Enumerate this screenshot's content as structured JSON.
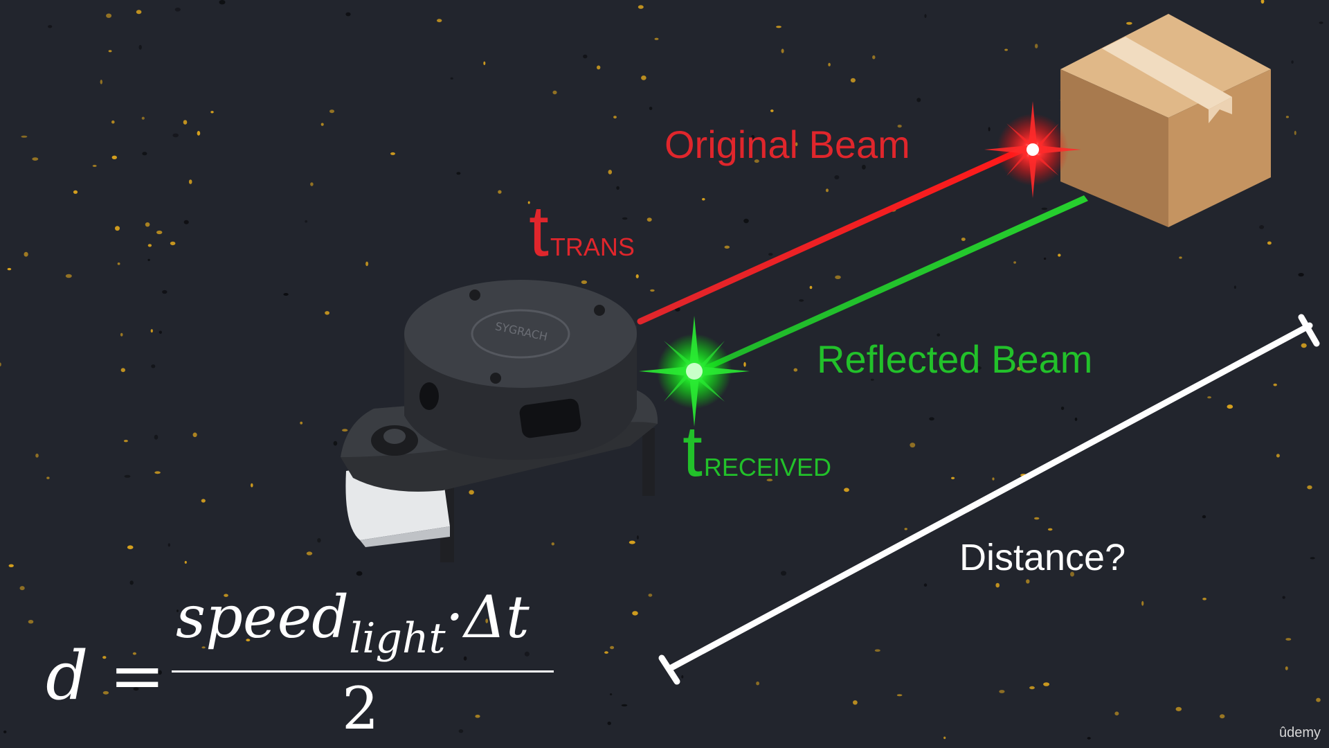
{
  "labels": {
    "original_beam": "Original Beam",
    "reflected_beam": "Reflected Beam",
    "distance": "Distance?",
    "t_trans_main": "t",
    "t_trans_sub": "TRANS",
    "t_received_main": "t",
    "t_received_sub": "RECEIVED"
  },
  "formula": {
    "lhs": "d =",
    "num_main": "speed",
    "num_sub": "light",
    "num_tail": "·Δt",
    "den": "2"
  },
  "lidar": {
    "top_text": "SYGRACH"
  },
  "brand": "ûdemy",
  "colors": {
    "background": "#22252d",
    "original_beam": "#e0262c",
    "reflected_beam": "#22c12a",
    "distance_marker": "#ffffff",
    "box": "#b9885a"
  },
  "icons": [
    "lidar-sensor-icon",
    "cardboard-box-icon",
    "red-flash-icon",
    "green-flash-icon"
  ]
}
